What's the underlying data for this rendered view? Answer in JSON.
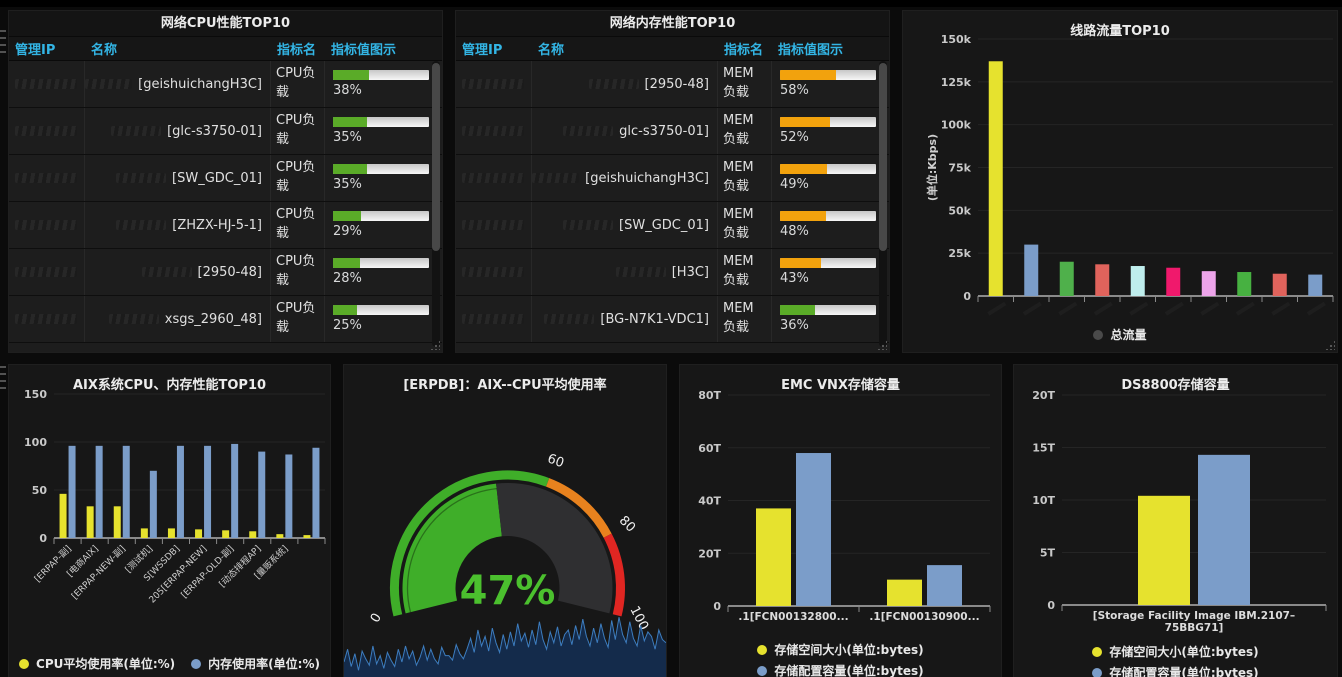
{
  "page": {
    "background": "#0b0b0b",
    "accent_blue": "#33b5e5"
  },
  "panels": {
    "cpu_table": {
      "title": "网络CPU性能TOP10",
      "columns": [
        "管理IP",
        "名称",
        "指标名",
        "指标值图示"
      ],
      "rows": [
        {
          "name": "[geishuichangH3C]",
          "metric": "CPU负载",
          "value": 38,
          "value_label": "38%",
          "bar_color": "#5aab28"
        },
        {
          "name": "[glc-s3750-01]",
          "metric": "CPU负载",
          "value": 35,
          "value_label": "35%",
          "bar_color": "#5aab28"
        },
        {
          "name": "[SW_GDC_01]",
          "metric": "CPU负载",
          "value": 35,
          "value_label": "35%",
          "bar_color": "#5aab28"
        },
        {
          "name": "[ZHZX-HJ-5-1]",
          "metric": "CPU负载",
          "value": 29,
          "value_label": "29%",
          "bar_color": "#5aab28"
        },
        {
          "name": "[2950-48]",
          "metric": "CPU负载",
          "value": 28,
          "value_label": "28%",
          "bar_color": "#5aab28"
        },
        {
          "name": "xsgs_2960_48]",
          "metric": "CPU负载",
          "value": 25,
          "value_label": "25%",
          "bar_color": "#5aab28"
        }
      ]
    },
    "mem_table": {
      "title": "网络内存性能TOP10",
      "columns": [
        "管理IP",
        "名称",
        "指标名",
        "指标值图示"
      ],
      "rows": [
        {
          "name": "[2950-48]",
          "metric": "MEM负载",
          "value": 58,
          "value_label": "58%",
          "bar_color": "#f2a20d"
        },
        {
          "name": "glc-s3750-01]",
          "metric": "MEM负载",
          "value": 52,
          "value_label": "52%",
          "bar_color": "#f2a20d"
        },
        {
          "name": "[geishuichangH3C]",
          "metric": "MEM负载",
          "value": 49,
          "value_label": "49%",
          "bar_color": "#f2a20d"
        },
        {
          "name": "[SW_GDC_01]",
          "metric": "MEM负载",
          "value": 48,
          "value_label": "48%",
          "bar_color": "#f2a20d"
        },
        {
          "name": "[H3C]",
          "metric": "MEM负载",
          "value": 43,
          "value_label": "43%",
          "bar_color": "#f2a20d"
        },
        {
          "name": "[BG-N7K1-VDC1]",
          "metric": "MEM负载",
          "value": 36,
          "value_label": "36%",
          "bar_color": "#5aab28"
        }
      ]
    }
  },
  "chart_data": [
    {
      "panel": "traffic",
      "type": "bar",
      "title": "线路流量TOP10",
      "ylabel": "(单位:Kbps)",
      "ylim": [
        0,
        150000
      ],
      "ytick_labels": [
        "150k",
        "125k",
        "100k",
        "75k",
        "50k",
        "25k",
        "0"
      ],
      "values": [
        137000,
        30000,
        20000,
        18500,
        17500,
        16500,
        14500,
        14000,
        13000,
        12500
      ],
      "bar_colors": [
        "#e6e22e",
        "#7b9dc9",
        "#4fb04b",
        "#e0635c",
        "#bfeeed",
        "#f0196c",
        "#eda4ea",
        "#47b141",
        "#e0635c",
        "#7b9dc9"
      ],
      "legend": [
        {
          "label": "总流量",
          "color": "#4a4a4a"
        }
      ]
    },
    {
      "panel": "aix",
      "type": "bar",
      "title": "AIX系统CPU、内存性能TOP10",
      "ylim": [
        0,
        150
      ],
      "ytick_labels": [
        "150",
        "100",
        "50",
        "0"
      ],
      "categories": [
        "[ERPAP-副]",
        "[电商AIX]",
        "[ERPAP-NEW-副]",
        "[测试机]",
        "S[WSSDB]",
        "205[ERPAP-NEW]",
        "[ERPAP-OLD-副]",
        "[动态排程AP]",
        "[量贩系统]",
        ""
      ],
      "series": [
        {
          "name": "CPU平均使用率(单位:%)",
          "color": "#e6e22e",
          "values": [
            46,
            33,
            33,
            10,
            10,
            9,
            8,
            7,
            4,
            3
          ]
        },
        {
          "name": "内存使用率(单位:%)",
          "color": "#7b9dc9",
          "values": [
            96,
            96,
            96,
            70,
            96,
            96,
            98,
            90,
            87,
            94
          ]
        }
      ]
    },
    {
      "panel": "gauge",
      "type": "gauge",
      "title": "[ERPDB]：AIX--CPU平均使用率",
      "value": 47,
      "value_label": "47%",
      "value_color": "#4bc02e",
      "ticks": [
        "0",
        "60",
        "80",
        "100"
      ],
      "ranges": [
        {
          "from": 0,
          "to": 60,
          "color": "#3fae29"
        },
        {
          "from": 60,
          "to": 80,
          "color": "#e8821e"
        },
        {
          "from": 80,
          "to": 100,
          "color": "#e02622"
        }
      ],
      "sparkline": {
        "color": "#3d7dbf",
        "fill": "#142f55",
        "values": [
          0.25,
          0.45,
          0.18,
          0.38,
          0.12,
          0.42,
          0.3,
          0.2,
          0.5,
          0.22,
          0.35,
          0.15,
          0.4,
          0.28,
          0.18,
          0.45,
          0.25,
          0.5,
          0.3,
          0.42,
          0.2,
          0.32,
          0.5,
          0.28,
          0.45,
          0.3,
          0.22,
          0.48,
          0.35,
          0.35,
          0.28,
          0.52,
          0.38,
          0.3,
          0.45,
          0.62,
          0.4,
          0.75,
          0.5,
          0.65,
          0.42,
          0.78,
          0.55,
          0.4,
          0.68,
          0.45,
          0.72,
          0.5,
          0.85,
          0.58,
          0.7,
          0.48,
          0.75,
          0.52,
          0.88,
          0.6,
          0.45,
          0.72,
          0.55,
          0.8,
          0.5,
          0.68,
          0.75,
          0.52,
          0.82,
          0.6,
          0.92,
          0.65,
          0.5,
          0.78,
          0.55,
          0.85,
          0.62,
          0.48,
          0.9,
          0.6,
          0.95,
          0.68,
          0.55,
          0.88,
          0.62,
          0.5,
          0.82,
          0.58,
          0.72,
          0.65,
          0.45,
          0.75,
          0.6,
          0.55
        ]
      }
    },
    {
      "panel": "emc",
      "type": "bar",
      "title": "EMC VNX存储容量",
      "ylim": [
        0,
        80
      ],
      "ytick_labels": [
        "80T",
        "60T",
        "40T",
        "20T",
        "0"
      ],
      "categories": [
        ".1[FCN00132800...",
        ".1[FCN00130900..."
      ],
      "series": [
        {
          "name": "存储空间大小(单位:bytes)",
          "color": "#e6e22e",
          "values": [
            37,
            10
          ]
        },
        {
          "name": "存储配置容量(单位:bytes)",
          "color": "#7b9dc9",
          "values": [
            58,
            15.5
          ]
        }
      ]
    },
    {
      "panel": "ds8800",
      "type": "bar",
      "title": "DS8800存储容量",
      "ylim": [
        0,
        20
      ],
      "ytick_labels": [
        "20T",
        "15T",
        "10T",
        "5T",
        "0"
      ],
      "categories": [
        "[Storage Facility Image IBM.2107–75BBG71]"
      ],
      "category_lines": [
        [
          "[Storage Facility Image IBM.2107–",
          "75BBG71]"
        ]
      ],
      "series": [
        {
          "name": "存储空间大小(单位:bytes)",
          "color": "#e6e22e",
          "values": [
            10.4
          ]
        },
        {
          "name": "存储配置容量(单位:bytes)",
          "color": "#7b9dc9",
          "values": [
            14.3
          ]
        }
      ]
    }
  ]
}
